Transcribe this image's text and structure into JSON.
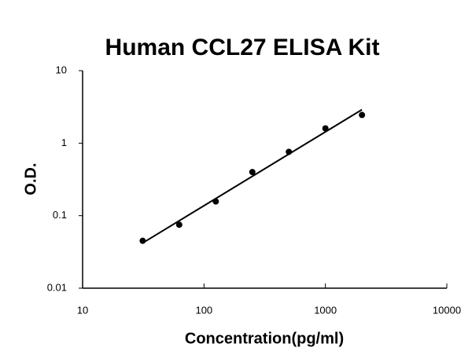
{
  "chart_data": {
    "type": "scatter",
    "title": "Human CCL27 ELISA Kit",
    "x_label": "Concentration(pg/ml)",
    "y_label": "O.D.",
    "x_log": true,
    "y_log": true,
    "xlim": [
      10,
      10000
    ],
    "xticks": [
      10,
      100,
      1000,
      10000
    ],
    "ylim": [
      0.01,
      10
    ],
    "yticks": [
      0.01,
      0.1,
      1,
      10
    ],
    "points": {
      "color": "#000000",
      "x": [
        31.25,
        62.5,
        125,
        250,
        500,
        1000,
        2000
      ],
      "values": [
        0.045,
        0.075,
        0.157,
        0.4,
        0.76,
        1.6,
        2.45
      ]
    },
    "fit_line": {
      "color": "#000000",
      "x": [
        31.25,
        2000
      ],
      "values": [
        0.042,
        2.9
      ]
    }
  }
}
